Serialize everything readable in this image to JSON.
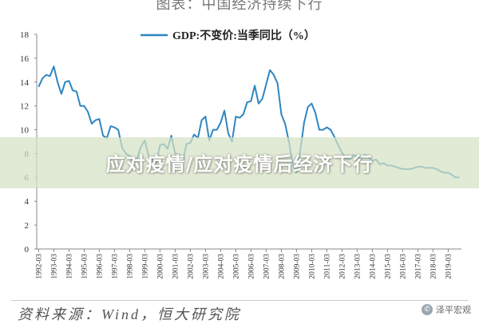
{
  "header": {
    "title_fragment": "图表：中国经济持续下行"
  },
  "banner": {
    "text": "应对疫情/应对疫情后经济下行"
  },
  "footer": {
    "source_text": "资料来源：Wind，恒大研究院",
    "watermark": "泽平宏观"
  },
  "colors": {
    "line": "#2e86c1",
    "banner": "#d6e2c4"
  },
  "chart_data": {
    "type": "line",
    "title": "",
    "xlabel": "",
    "ylabel": "",
    "ylim": [
      0,
      18
    ],
    "yticks": [
      0,
      2,
      4,
      6,
      8,
      10,
      12,
      14,
      16,
      18
    ],
    "grid": false,
    "legend_position": "top",
    "series": [
      {
        "name": "GDP:不变价:当季同比（%）",
        "x": [
          "1992-03",
          "1992-06",
          "1992-09",
          "1992-12",
          "1993-03",
          "1993-06",
          "1993-09",
          "1993-12",
          "1994-03",
          "1994-06",
          "1994-09",
          "1994-12",
          "1995-03",
          "1995-06",
          "1995-09",
          "1995-12",
          "1996-03",
          "1996-06",
          "1996-09",
          "1996-12",
          "1997-03",
          "1997-06",
          "1997-09",
          "1997-12",
          "1998-03",
          "1998-06",
          "1998-09",
          "1998-12",
          "1999-03",
          "1999-06",
          "1999-09",
          "1999-12",
          "2000-03",
          "2000-06",
          "2000-09",
          "2000-12",
          "2001-03",
          "2001-06",
          "2001-09",
          "2001-12",
          "2002-03",
          "2002-06",
          "2002-09",
          "2002-12",
          "2003-03",
          "2003-06",
          "2003-09",
          "2003-12",
          "2004-03",
          "2004-06",
          "2004-09",
          "2004-12",
          "2005-03",
          "2005-06",
          "2005-09",
          "2005-12",
          "2006-03",
          "2006-06",
          "2006-09",
          "2006-12",
          "2007-03",
          "2007-06",
          "2007-09",
          "2007-12",
          "2008-03",
          "2008-06",
          "2008-09",
          "2008-12",
          "2009-03",
          "2009-06",
          "2009-09",
          "2009-12",
          "2010-03",
          "2010-06",
          "2010-09",
          "2010-12",
          "2011-03",
          "2011-06",
          "2011-09",
          "2011-12",
          "2012-03",
          "2012-06",
          "2012-09",
          "2012-12",
          "2013-03",
          "2013-06",
          "2013-09",
          "2013-12",
          "2014-03",
          "2014-06",
          "2014-09",
          "2014-12",
          "2015-03",
          "2015-06",
          "2015-09",
          "2015-12",
          "2016-03",
          "2016-06",
          "2016-09",
          "2016-12",
          "2017-03",
          "2017-06",
          "2017-09",
          "2017-12",
          "2018-03",
          "2018-06",
          "2018-09",
          "2018-12",
          "2019-03",
          "2019-06",
          "2019-09",
          "2019-12"
        ],
        "values": [
          13.6,
          14.3,
          14.6,
          14.5,
          15.3,
          14.0,
          13.0,
          14.0,
          14.1,
          13.3,
          13.2,
          12.0,
          12.0,
          11.5,
          10.5,
          10.8,
          10.9,
          9.5,
          9.3,
          10.3,
          10.2,
          10.0,
          8.5,
          8.0,
          7.8,
          7.3,
          7.6,
          8.6,
          9.1,
          7.8,
          7.5,
          7.2,
          8.7,
          8.8,
          8.4,
          9.5,
          8.0,
          7.9,
          7.3,
          8.8,
          8.9,
          9.6,
          9.3,
          10.8,
          11.1,
          9.1,
          10.0,
          10.0,
          10.6,
          11.6,
          9.7,
          9.0,
          11.1,
          11.0,
          11.3,
          12.3,
          12.4,
          13.7,
          12.2,
          12.6,
          13.8,
          15.0,
          14.6,
          13.9,
          11.3,
          10.5,
          9.0,
          7.1,
          6.4,
          8.2,
          10.6,
          11.9,
          12.2,
          11.4,
          10.0,
          10.0,
          10.2,
          10.0,
          9.4,
          8.7,
          8.1,
          7.6,
          7.5,
          7.9,
          7.7,
          7.5,
          7.9,
          7.7,
          7.4,
          7.5,
          7.1,
          7.2,
          7.0,
          7.0,
          6.9,
          6.8,
          6.7,
          6.7,
          6.7,
          6.8,
          6.9,
          6.9,
          6.8,
          6.8,
          6.8,
          6.7,
          6.5,
          6.4,
          6.4,
          6.2,
          6.0,
          6.0
        ]
      }
    ]
  }
}
